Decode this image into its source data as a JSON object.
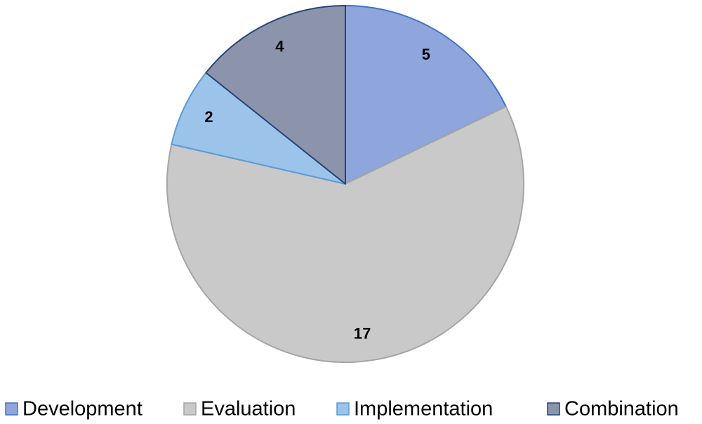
{
  "chart_data": {
    "type": "pie",
    "categories": [
      "Development",
      "Evaluation",
      "Implementation",
      "Combination"
    ],
    "values": [
      5,
      17,
      2,
      4
    ],
    "colors": [
      "#8fa6dc",
      "#c9c9c9",
      "#9cc3ea",
      "#8c94ac"
    ],
    "stroke_colors": [
      "#4472c4",
      "#a5a5a5",
      "#5b9bd5",
      "#264478"
    ]
  }
}
